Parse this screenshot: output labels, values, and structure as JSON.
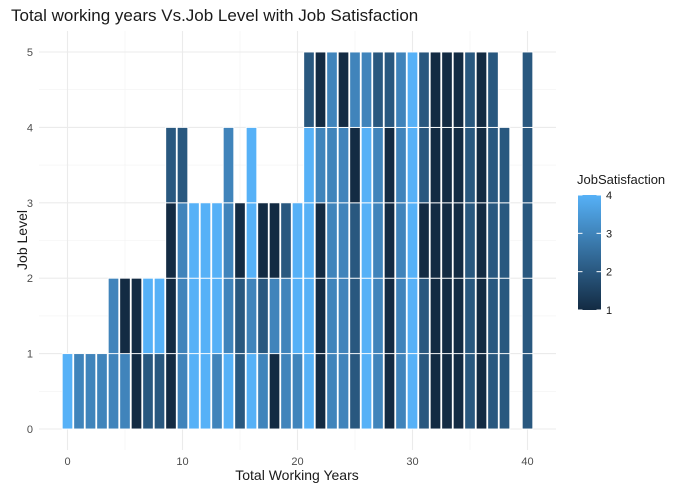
{
  "chart_data": {
    "type": "bar",
    "title": "Total working years Vs.Job Level with Job Satisfaction",
    "xlabel": "Total Working Years",
    "ylabel": "Job Level",
    "xlim": [
      -1,
      41
    ],
    "ylim": [
      0,
      5
    ],
    "x_ticks": [
      0,
      10,
      20,
      30,
      40
    ],
    "y_ticks": [
      0,
      1,
      2,
      3,
      4,
      5
    ],
    "grid": true,
    "legend": {
      "title": "JobSatisfaction",
      "position": "right",
      "ticks": [
        1,
        2,
        3,
        4
      ],
      "low_color": "#132b43",
      "high_color": "#56b1f7"
    },
    "bars": [
      {
        "x": 0,
        "segments": [
          [
            0,
            1,
            4
          ]
        ]
      },
      {
        "x": 1,
        "segments": [
          [
            0,
            1,
            3
          ]
        ]
      },
      {
        "x": 2,
        "segments": [
          [
            0,
            1,
            3
          ]
        ]
      },
      {
        "x": 3,
        "segments": [
          [
            0,
            1,
            3
          ]
        ]
      },
      {
        "x": 4,
        "segments": [
          [
            0,
            1,
            3
          ],
          [
            1,
            2,
            3
          ]
        ]
      },
      {
        "x": 5,
        "segments": [
          [
            0,
            1,
            3
          ],
          [
            1,
            2,
            1
          ]
        ]
      },
      {
        "x": 6,
        "segments": [
          [
            0,
            1,
            1
          ],
          [
            1,
            2,
            1
          ]
        ]
      },
      {
        "x": 7,
        "segments": [
          [
            0,
            1,
            2
          ],
          [
            1,
            2,
            4
          ]
        ]
      },
      {
        "x": 8,
        "segments": [
          [
            0,
            1,
            2
          ],
          [
            1,
            2,
            4
          ]
        ]
      },
      {
        "x": 9,
        "segments": [
          [
            0,
            1,
            1
          ],
          [
            1,
            2,
            1
          ],
          [
            2,
            3,
            1
          ],
          [
            3,
            4,
            2
          ]
        ]
      },
      {
        "x": 10,
        "segments": [
          [
            0,
            1,
            3
          ],
          [
            1,
            2,
            3
          ],
          [
            2,
            3,
            3
          ],
          [
            3,
            4,
            2
          ]
        ]
      },
      {
        "x": 11,
        "segments": [
          [
            0,
            1,
            4
          ],
          [
            1,
            2,
            4
          ],
          [
            2,
            3,
            4
          ]
        ]
      },
      {
        "x": 12,
        "segments": [
          [
            0,
            1,
            4
          ],
          [
            1,
            2,
            4
          ],
          [
            2,
            3,
            4
          ]
        ]
      },
      {
        "x": 13,
        "segments": [
          [
            0,
            1,
            3
          ],
          [
            1,
            2,
            4
          ],
          [
            2,
            3,
            4
          ]
        ]
      },
      {
        "x": 14,
        "segments": [
          [
            0,
            1,
            4
          ],
          [
            1,
            2,
            3
          ],
          [
            2,
            3,
            3
          ],
          [
            3,
            4,
            3
          ]
        ]
      },
      {
        "x": 15,
        "segments": [
          [
            0,
            1,
            2
          ],
          [
            1,
            2,
            2
          ],
          [
            2,
            3,
            1
          ]
        ]
      },
      {
        "x": 16,
        "segments": [
          [
            0,
            1,
            4
          ],
          [
            1,
            2,
            3
          ],
          [
            2,
            3,
            4
          ],
          [
            3,
            4,
            4
          ]
        ]
      },
      {
        "x": 17,
        "segments": [
          [
            0,
            1,
            3
          ],
          [
            1,
            2,
            2
          ],
          [
            2,
            3,
            1
          ]
        ]
      },
      {
        "x": 18,
        "segments": [
          [
            0,
            1,
            1
          ],
          [
            1,
            2,
            3
          ],
          [
            2,
            3,
            1
          ]
        ]
      },
      {
        "x": 19,
        "segments": [
          [
            0,
            1,
            3
          ],
          [
            1,
            2,
            3
          ],
          [
            2,
            3,
            2
          ]
        ]
      },
      {
        "x": 20,
        "segments": [
          [
            0,
            1,
            3
          ],
          [
            1,
            2,
            4
          ],
          [
            2,
            3,
            4
          ]
        ]
      },
      {
        "x": 21,
        "segments": [
          [
            0,
            1,
            4
          ],
          [
            1,
            2,
            4
          ],
          [
            2,
            3,
            4
          ],
          [
            3,
            4,
            4
          ],
          [
            4,
            5,
            2
          ]
        ]
      },
      {
        "x": 22,
        "segments": [
          [
            0,
            1,
            1
          ],
          [
            1,
            2,
            1
          ],
          [
            2,
            3,
            1
          ],
          [
            3,
            4,
            3
          ],
          [
            4,
            5,
            1
          ]
        ]
      },
      {
        "x": 23,
        "segments": [
          [
            0,
            1,
            3
          ],
          [
            1,
            2,
            3
          ],
          [
            2,
            3,
            3
          ],
          [
            3,
            4,
            3
          ],
          [
            4,
            5,
            3
          ]
        ]
      },
      {
        "x": 24,
        "segments": [
          [
            0,
            1,
            3
          ],
          [
            1,
            2,
            3
          ],
          [
            2,
            3,
            3
          ],
          [
            3,
            4,
            3
          ],
          [
            4,
            5,
            1
          ]
        ]
      },
      {
        "x": 25,
        "segments": [
          [
            0,
            1,
            2
          ],
          [
            1,
            2,
            2
          ],
          [
            2,
            3,
            2
          ],
          [
            3,
            4,
            1
          ],
          [
            4,
            5,
            3
          ]
        ]
      },
      {
        "x": 26,
        "segments": [
          [
            0,
            1,
            4
          ],
          [
            1,
            2,
            4
          ],
          [
            2,
            3,
            4
          ],
          [
            3,
            4,
            4
          ],
          [
            4,
            5,
            3
          ]
        ]
      },
      {
        "x": 27,
        "segments": [
          [
            0,
            1,
            3
          ],
          [
            1,
            2,
            3
          ],
          [
            2,
            3,
            3
          ],
          [
            3,
            4,
            3
          ],
          [
            4,
            5,
            2
          ]
        ]
      },
      {
        "x": 28,
        "segments": [
          [
            0,
            1,
            1
          ],
          [
            1,
            2,
            1
          ],
          [
            2,
            3,
            1
          ],
          [
            3,
            4,
            1
          ],
          [
            4,
            5,
            2
          ]
        ]
      },
      {
        "x": 29,
        "segments": [
          [
            0,
            1,
            3
          ],
          [
            1,
            2,
            3
          ],
          [
            2,
            3,
            3
          ],
          [
            3,
            4,
            3
          ],
          [
            4,
            5,
            3
          ]
        ]
      },
      {
        "x": 30,
        "segments": [
          [
            0,
            1,
            4
          ],
          [
            1,
            2,
            4
          ],
          [
            2,
            3,
            4
          ],
          [
            3,
            4,
            4
          ],
          [
            4,
            5,
            4
          ]
        ]
      },
      {
        "x": 31,
        "segments": [
          [
            0,
            1,
            2
          ],
          [
            1,
            2,
            2
          ],
          [
            2,
            3,
            1
          ],
          [
            3,
            4,
            2
          ],
          [
            4,
            5,
            2
          ]
        ]
      },
      {
        "x": 32,
        "segments": [
          [
            0,
            1,
            1
          ],
          [
            1,
            2,
            1
          ],
          [
            2,
            3,
            1
          ],
          [
            3,
            4,
            1
          ],
          [
            4,
            5,
            1
          ]
        ]
      },
      {
        "x": 33,
        "segments": [
          [
            0,
            1,
            1
          ],
          [
            1,
            2,
            1
          ],
          [
            2,
            3,
            1
          ],
          [
            3,
            4,
            1
          ],
          [
            4,
            5,
            1
          ]
        ]
      },
      {
        "x": 34,
        "segments": [
          [
            0,
            1,
            1
          ],
          [
            1,
            2,
            1
          ],
          [
            2,
            3,
            1
          ],
          [
            3,
            4,
            1
          ],
          [
            4,
            5,
            1
          ]
        ]
      },
      {
        "x": 35,
        "segments": [
          [
            0,
            1,
            2
          ],
          [
            1,
            2,
            2
          ],
          [
            2,
            3,
            2
          ],
          [
            3,
            4,
            2
          ],
          [
            4,
            5,
            2
          ]
        ]
      },
      {
        "x": 36,
        "segments": [
          [
            0,
            1,
            1
          ],
          [
            1,
            2,
            1
          ],
          [
            2,
            3,
            1
          ],
          [
            3,
            4,
            1
          ],
          [
            4,
            5,
            1
          ]
        ]
      },
      {
        "x": 37,
        "segments": [
          [
            0,
            1,
            2
          ],
          [
            1,
            2,
            2
          ],
          [
            2,
            3,
            2
          ],
          [
            3,
            4,
            2
          ],
          [
            4,
            5,
            2
          ]
        ]
      },
      {
        "x": 38,
        "segments": [
          [
            0,
            1,
            2
          ],
          [
            1,
            2,
            2
          ],
          [
            2,
            3,
            2
          ],
          [
            3,
            4,
            2
          ]
        ]
      },
      {
        "x": 40,
        "segments": [
          [
            0,
            1,
            2
          ],
          [
            1,
            2,
            2
          ],
          [
            2,
            3,
            2
          ],
          [
            3,
            4,
            2
          ],
          [
            4,
            5,
            2
          ]
        ]
      }
    ]
  }
}
